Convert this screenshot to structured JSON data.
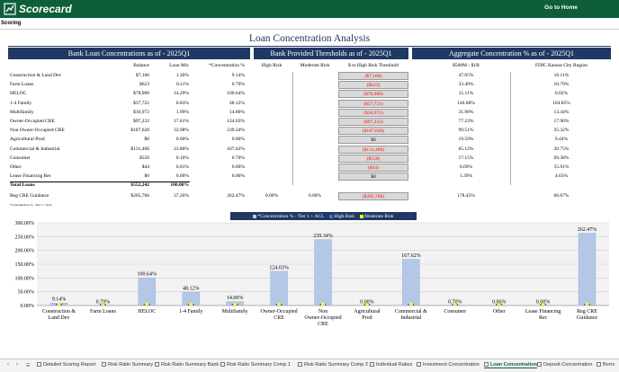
{
  "app": {
    "name": "Scorecard",
    "go_home": "Go to Home",
    "sheet_label": "Scoring",
    "brand_color": "#0e5e3a",
    "header_color": "#1f3864"
  },
  "page_title": "Loan Concentration Analysis",
  "sections": {
    "bank": "Bank Loan Concentrations as of - 2025Q1",
    "thresholds": "Bank Provided Thresholds as of - 2025Q1",
    "aggregate": "Aggregate Concentration % as of - 2025Q1"
  },
  "columns": {
    "balance": "Balance",
    "loan_mix": "Loan Mix",
    "concentration": "*Concentration %",
    "high_risk": "High Risk",
    "moderate_risk": "Moderate Risk",
    "to_high_risk": "$ to High Risk Threshold",
    "peer": "$500M - $1B",
    "fdic": "FDIC Kansas City Region"
  },
  "rows": [
    {
      "label": "Construction & Land Dev",
      "balance": "$7,166",
      "mix": "1.30%",
      "conc": "9.14%",
      "thresh": "($7,166)",
      "red": true,
      "peer": "47.05%",
      "fdic": "16.11%"
    },
    {
      "label": "Farm Loans",
      "balance": "$623",
      "mix": "0.11%",
      "conc": "0.79%",
      "thresh": "($623)",
      "red": true,
      "peer": "33.49%",
      "fdic": "10.79%"
    },
    {
      "label": "HELOC",
      "balance": "$78,900",
      "mix": "14.29%",
      "conc": "100.64%",
      "thresh": "($78,900)",
      "red": true,
      "peer": "15.11%",
      "fdic": "6.02%"
    },
    {
      "label": "1-4 Family",
      "balance": "$37,721",
      "mix": "6.83%",
      "conc": "48.12%",
      "thresh": "($37,721)",
      "red": true,
      "peer": "146.68%",
      "fdic": "104.85%"
    },
    {
      "label": "Multifamily",
      "balance": "$10,972",
      "mix": "1.99%",
      "conc": "14.00%",
      "thresh": "($10,972)",
      "red": true,
      "peer": "31.90%",
      "fdic": "13.44%"
    },
    {
      "label": "Owner-Occupied CRE",
      "balance": "$97,232",
      "mix": "17.61%",
      "conc": "124.03%",
      "thresh": "($97,232)",
      "red": true,
      "peer": "77.23%",
      "fdic": "17.96%"
    },
    {
      "label": "Non Owner-Occupied CRE",
      "balance": "$187,628",
      "mix": "33.98%",
      "conc": "239.34%",
      "thresh": "($187,628)",
      "red": true,
      "peer": "99.51%",
      "fdic": "35.32%"
    },
    {
      "label": "Agricultural Prod",
      "balance": "$0",
      "mix": "0.00%",
      "conc": "0.00%",
      "thresh": "$0",
      "red": false,
      "peer": "19.59%",
      "fdic": "9.44%"
    },
    {
      "label": "Commercial & Industrial",
      "balance": "$131,406",
      "mix": "23.80%",
      "conc": "167.62%",
      "thresh": "($131,406)",
      "red": true,
      "peer": "65.12%",
      "fdic": "20.75%"
    },
    {
      "label": "Consumer",
      "balance": "$550",
      "mix": "0.10%",
      "conc": "0.70%",
      "thresh": "($550)",
      "red": true,
      "peer": "17.15%",
      "fdic": "69.38%"
    },
    {
      "label": "Other",
      "balance": "$44",
      "mix": "0.01%",
      "conc": "0.06%",
      "thresh": "($44)",
      "red": true,
      "peer": "6.69%",
      "fdic": "55.91%"
    },
    {
      "label": "Lease Financing Rec",
      "balance": "$0",
      "mix": "0.00%",
      "conc": "0.00%",
      "thresh": "$0",
      "red": false,
      "peer": "1.39%",
      "fdic": "4.63%"
    }
  ],
  "total": {
    "label": "Total Loans",
    "balance": "$552,242",
    "mix": "100.00%"
  },
  "reg_cre": {
    "label": "Reg CRE Guidance",
    "balance": "$205,766",
    "mix": "37.26%",
    "conc": "262.47%",
    "high": "0.00%",
    "moderate": "0.00%",
    "thresh": "($205,766)",
    "peer": "178.45%",
    "fdic": "66.87%"
  },
  "footnote": "*Concentration % - Tier 1 + ACL",
  "chart_data": {
    "type": "bar",
    "categories": [
      "Construction & Land Dev",
      "Farm Loans",
      "HELOC",
      "1-4 Family",
      "Multifamily",
      "Owner-Occupied CRE",
      "Non Owner-Occupied CRE",
      "Agricultural Prod",
      "Commercial & Industrial",
      "Consumer",
      "Other",
      "Lease Financing Rec",
      "Reg CRE Guidance"
    ],
    "series": [
      {
        "name": "*Concentration % - Tier 1 + ACL",
        "values": [
          9.14,
          0.79,
          100.64,
          48.12,
          14.0,
          124.03,
          239.34,
          0.0,
          167.62,
          0.7,
          0.06,
          0.0,
          262.47
        ],
        "labels": [
          "9.14%",
          "0.79%",
          "100.64%",
          "48.12%",
          "14.00%",
          "124.03%",
          "239.34%",
          "0.00%",
          "167.62%",
          "0.70%",
          "0.06%",
          "0.00%",
          "262.47%"
        ],
        "color": "#b4c7e7"
      },
      {
        "name": "High Risk",
        "values": [
          0,
          0,
          0,
          0,
          0,
          0,
          0,
          0,
          0,
          0,
          0,
          0,
          0
        ],
        "color": "#4472c4"
      },
      {
        "name": "Moderate Risk",
        "values": [
          0,
          0,
          0,
          0,
          0,
          0,
          0,
          0,
          0,
          0,
          0,
          0,
          0
        ],
        "color": "#ffff00"
      }
    ],
    "yticks": [
      "0.00%",
      "50.00%",
      "100.00%",
      "150.00%",
      "200.00%",
      "250.00%",
      "300.00%"
    ],
    "ylim": [
      0,
      300
    ],
    "grid": true,
    "legend": "top-center"
  },
  "tabs": [
    {
      "label": "Detailed Scoring Report",
      "active": false
    },
    {
      "label": "Risk Ratio Summary",
      "active": false
    },
    {
      "label": "Risk Ratio Summary Bank",
      "active": false
    },
    {
      "label": "Risk Ratio Summary Comp 1",
      "active": false
    },
    {
      "label": "Risk Ratio Summary Comp 2",
      "active": false
    },
    {
      "label": "Individual Ratios",
      "active": false
    },
    {
      "label": "Investment Concentration",
      "active": false
    },
    {
      "label": "Loan Concentration",
      "active": true
    },
    {
      "label": "Deposit Concentration",
      "active": false
    },
    {
      "label": "Borro",
      "active": false
    }
  ]
}
